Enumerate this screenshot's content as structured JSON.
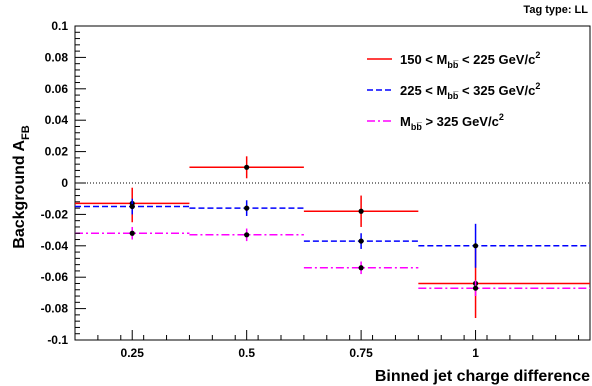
{
  "chart_data": {
    "type": "scatter",
    "tag": "Tag type: LL",
    "xlabel": "Binned jet charge difference",
    "ylabel_main": "Background A",
    "ylabel_sub": "FB",
    "xlim": [
      0.125,
      1.25
    ],
    "ylim": [
      -0.1,
      0.1
    ],
    "x_ticks": [
      {
        "value": 0.25,
        "label": "0.25"
      },
      {
        "value": 0.5,
        "label": "0.5"
      },
      {
        "value": 0.75,
        "label": "0.75"
      },
      {
        "value": 1,
        "label": "1"
      }
    ],
    "y_ticks": [
      {
        "value": 0.1,
        "label": "0.1"
      },
      {
        "value": 0.08,
        "label": "0.08"
      },
      {
        "value": 0.06,
        "label": "0.06"
      },
      {
        "value": 0.04,
        "label": "0.04"
      },
      {
        "value": 0.02,
        "label": "0.02"
      },
      {
        "value": 0,
        "label": "0"
      },
      {
        "value": -0.02,
        "label": "-0.02"
      },
      {
        "value": -0.04,
        "label": "-0.04"
      },
      {
        "value": -0.06,
        "label": "-0.06"
      },
      {
        "value": -0.08,
        "label": "-0.08"
      },
      {
        "value": -0.1,
        "label": "-0.1"
      }
    ],
    "reference_line": {
      "y": 0,
      "style": "dotted"
    },
    "legend_position": "top-right",
    "series": [
      {
        "name": "150 < M_{b̅b} < 225 GeV/c^{2}",
        "legend": {
          "pre": "150 < M",
          "sub": "bb̅",
          "post": " < 225 GeV/c",
          "sup": "2"
        },
        "color": "#ff0000",
        "dash": "solid",
        "points": [
          {
            "x": 0.25,
            "x_low": 0.125,
            "x_high": 0.375,
            "y": -0.013,
            "y_low": -0.025,
            "y_high": -0.003
          },
          {
            "x": 0.5,
            "x_low": 0.375,
            "x_high": 0.625,
            "y": 0.01,
            "y_low": 0.003,
            "y_high": 0.017
          },
          {
            "x": 0.75,
            "x_low": 0.625,
            "x_high": 0.875,
            "y": -0.018,
            "y_low": -0.028,
            "y_high": -0.008
          },
          {
            "x": 1.0,
            "x_low": 0.875,
            "x_high": 1.25,
            "y": -0.064,
            "y_low": -0.086,
            "y_high": -0.042
          }
        ]
      },
      {
        "name": "225 < M_{b̅b} < 325 GeV/c^{2}",
        "legend": {
          "pre": "225 < M",
          "sub": "bb̅",
          "post": " < 325 GeV/c",
          "sup": "2"
        },
        "color": "#0000ff",
        "dash": "dashed",
        "points": [
          {
            "x": 0.25,
            "x_low": 0.125,
            "x_high": 0.375,
            "y": -0.015,
            "y_low": -0.02,
            "y_high": -0.01
          },
          {
            "x": 0.5,
            "x_low": 0.375,
            "x_high": 0.625,
            "y": -0.016,
            "y_low": -0.021,
            "y_high": -0.011
          },
          {
            "x": 0.75,
            "x_low": 0.625,
            "x_high": 0.875,
            "y": -0.037,
            "y_low": -0.042,
            "y_high": -0.032
          },
          {
            "x": 1.0,
            "x_low": 0.875,
            "x_high": 1.25,
            "y": -0.04,
            "y_low": -0.054,
            "y_high": -0.026
          }
        ]
      },
      {
        "name": "M_{b̅b} > 325 GeV/c^{2}",
        "legend": {
          "pre": "M",
          "sub": "bb̅",
          "post": " > 325 GeV/c",
          "sup": "2"
        },
        "color": "#ff00ff",
        "dash": "dashdot",
        "points": [
          {
            "x": 0.25,
            "x_low": 0.125,
            "x_high": 0.375,
            "y": -0.032,
            "y_low": -0.036,
            "y_high": -0.028
          },
          {
            "x": 0.5,
            "x_low": 0.375,
            "x_high": 0.625,
            "y": -0.033,
            "y_low": -0.037,
            "y_high": -0.029
          },
          {
            "x": 0.75,
            "x_low": 0.625,
            "x_high": 0.875,
            "y": -0.054,
            "y_low": -0.058,
            "y_high": -0.05
          },
          {
            "x": 1.0,
            "x_low": 0.875,
            "x_high": 1.25,
            "y": -0.067,
            "y_low": -0.072,
            "y_high": -0.062
          }
        ]
      }
    ]
  }
}
